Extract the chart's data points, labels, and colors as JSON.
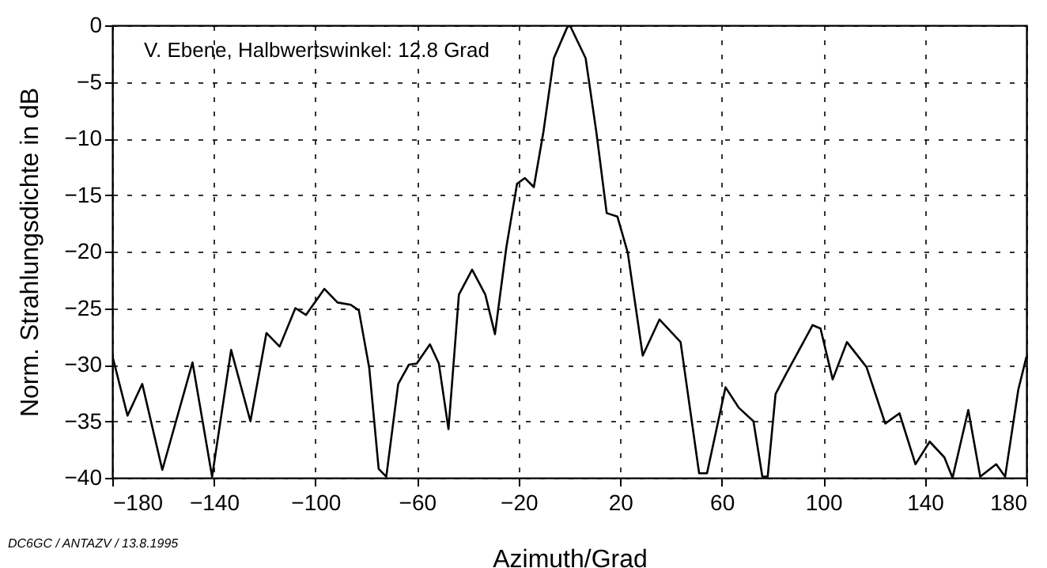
{
  "chart_data": {
    "type": "line",
    "xlabel": "Azimuth/Grad",
    "ylabel": "Norm. Strahlungsdichte in dB",
    "annotations": [
      "V. Ebene, Halbwertswinkel: 12.8 Grad",
      "DC6GC / ANTAZV / 13.8.1995"
    ],
    "x": [
      -180,
      -174,
      -168.2,
      -160.3,
      -148.4,
      -140.7,
      -133.2,
      -125.6,
      -119.3,
      -114.1,
      -107.9,
      -103.7,
      -96.5,
      -91.3,
      -86.1,
      -82.9,
      -78.8,
      -75.1,
      -72.1,
      -67.4,
      -63.2,
      -60.1,
      -54.9,
      -51.4,
      -47.6,
      -43.5,
      -38.3,
      -33.1,
      -29.3,
      -24.8,
      -20.6,
      -17.5,
      -14,
      -10.2,
      -6.1,
      -0.9,
      0.2,
      6.4,
      10.6,
      14.7,
      18.9,
      23,
      28.9,
      35.5,
      43.8,
      51.1,
      54.2,
      61.5,
      66.7,
      72.5,
      76,
      78.1,
      81.2,
      85.4,
      95.8,
      98.9,
      103.7,
      109.3,
      117,
      124.4,
      130,
      136.3,
      141.9,
      147.7,
      150.9,
      157.1,
      161.8,
      168.1,
      171.6,
      176.8,
      180
    ],
    "series": [
      {
        "color": "#000000",
        "values": [
          -29.2,
          -34.5,
          -31.7,
          -39.3,
          -29.8,
          -39.9,
          -28.7,
          -35,
          -27.2,
          -28.4,
          -25,
          -25.6,
          -23.3,
          -24.5,
          -24.7,
          -25.2,
          -30.3,
          -39.2,
          -39.9,
          -31.7,
          -30,
          -29.9,
          -28.2,
          -29.9,
          -35.7,
          -23.8,
          -21.6,
          -23.8,
          -27.3,
          -19.6,
          -14,
          -13.5,
          -14.3,
          -9.4,
          -2.9,
          -0.2,
          0,
          -2.9,
          -9.4,
          -16.6,
          -16.9,
          -20.1,
          -29.2,
          -26,
          -28,
          -39.6,
          -39.6,
          -32,
          -33.8,
          -35,
          -39.9,
          -39.9,
          -32.6,
          -30.8,
          -26.5,
          -26.8,
          -31.3,
          -28,
          -30.2,
          -35.2,
          -34.3,
          -38.8,
          -36.8,
          -38.2,
          -40,
          -34,
          -39.9,
          -38.8,
          -39.9,
          -32.2,
          -29.3
        ]
      }
    ],
    "xlim": [
      -180,
      180
    ],
    "xticks": [
      -180,
      -140,
      -100,
      -60,
      -20,
      20,
      60,
      100,
      140,
      180
    ],
    "ylim": [
      -40,
      0
    ],
    "yticks": [
      0,
      -5,
      -10,
      -15,
      -20,
      -25,
      -30,
      -35,
      -40
    ],
    "grid": true,
    "line_style": "solid"
  }
}
